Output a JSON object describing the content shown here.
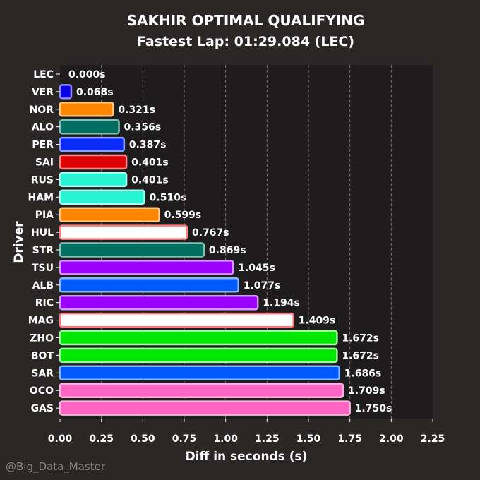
{
  "chart_data": {
    "type": "bar",
    "orientation": "horizontal",
    "title": "SAKHIR OPTIMAL QUALIFYING",
    "subtitle": "Fastest Lap: 01:29.084 (LEC)",
    "xlabel": "Diff in seconds (s)",
    "ylabel": "Driver",
    "xlim": [
      0,
      2.25
    ],
    "xticks": [
      "0.00",
      "0.25",
      "0.50",
      "0.75",
      "1.00",
      "1.25",
      "1.50",
      "1.75",
      "2.00",
      "2.25"
    ],
    "grid": "vertical-dashed",
    "categories": [
      "LEC",
      "VER",
      "NOR",
      "ALO",
      "PER",
      "SAI",
      "RUS",
      "HAM",
      "PIA",
      "HUL",
      "STR",
      "TSU",
      "ALB",
      "RIC",
      "MAG",
      "ZHO",
      "BOT",
      "SAR",
      "OCO",
      "GAS"
    ],
    "values": [
      0.0,
      0.068,
      0.321,
      0.356,
      0.387,
      0.401,
      0.401,
      0.51,
      0.599,
      0.767,
      0.869,
      1.045,
      1.077,
      1.194,
      1.409,
      1.672,
      1.672,
      1.686,
      1.709,
      1.75
    ],
    "value_labels": [
      "0.000s",
      "0.068s",
      "0.321s",
      "0.356s",
      "0.387s",
      "0.401s",
      "0.401s",
      "0.510s",
      "0.599s",
      "0.767s",
      "0.869s",
      "1.045s",
      "1.077s",
      "1.194s",
      "1.409s",
      "1.672s",
      "1.672s",
      "1.686s",
      "1.709s",
      "1.750s"
    ],
    "bar_colors": [
      "#dc0000",
      "#0b00e0",
      "#ff8700",
      "#006f62",
      "#0b2bff",
      "#dc0000",
      "#27f4d2",
      "#27f4d2",
      "#ff8700",
      "#ffffff",
      "#006f62",
      "#9b00ff",
      "#005aff",
      "#9b00ff",
      "#ffffff",
      "#00e701",
      "#00e701",
      "#005aff",
      "#ff66c4",
      "#ff66c4"
    ],
    "edge_colors": [
      "#ff8a8a",
      "#8f8aff",
      "#ffc98a",
      "#7fc2b8",
      "#8aa0ff",
      "#ff8a8a",
      "#a8fff0",
      "#a8fff0",
      "#ffc98a",
      "#ff7a7a",
      "#7fc2b8",
      "#d59aff",
      "#8ab8ff",
      "#d59aff",
      "#ff7a7a",
      "#9dff9d",
      "#9dff9d",
      "#8ab8ff",
      "#ffb3e0",
      "#ffb3e0"
    ]
  },
  "watermark": "@Big_Data_Master"
}
